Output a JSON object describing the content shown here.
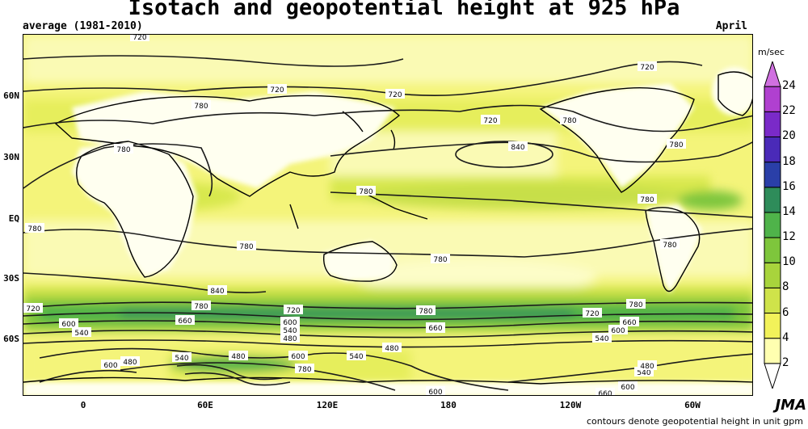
{
  "title": "Isotach and geopotential height at 925 hPa",
  "subtitle": "average (1981-2010)",
  "month": "April",
  "footer": "contours denote geopotential height in unit gpm",
  "logo": "JMA",
  "latitude_labels": [
    "60N",
    "30N",
    "EQ",
    "30S",
    "60S"
  ],
  "longitude_labels": [
    "0",
    "60E",
    "120E",
    "180",
    "120W",
    "60W"
  ],
  "colorbar": {
    "unit": "m/sec",
    "ticks": [
      "2",
      "4",
      "6",
      "8",
      "10",
      "12",
      "14",
      "16",
      "18",
      "20",
      "22",
      "24"
    ],
    "colors": [
      "#fffffe",
      "#ffffb0",
      "#f2f25a",
      "#cfe34a",
      "#a8d43c",
      "#7ec63c",
      "#4fb34a",
      "#2e8c5a",
      "#2a3fa8",
      "#4a2ab8",
      "#7a2ac8",
      "#b040d0",
      "#d070e0"
    ]
  },
  "contour_labels": [
    "720",
    "720",
    "720",
    "720",
    "720",
    "720",
    "720",
    "720",
    "780",
    "780",
    "780",
    "780",
    "780",
    "780",
    "780",
    "780",
    "780",
    "780",
    "780",
    "780",
    "780",
    "780",
    "840",
    "840",
    "600",
    "600",
    "600",
    "600",
    "600",
    "600",
    "600",
    "600",
    "660",
    "660",
    "660",
    "660",
    "540",
    "540",
    "540",
    "540",
    "540",
    "540",
    "480",
    "480",
    "480",
    "480",
    "480"
  ]
}
